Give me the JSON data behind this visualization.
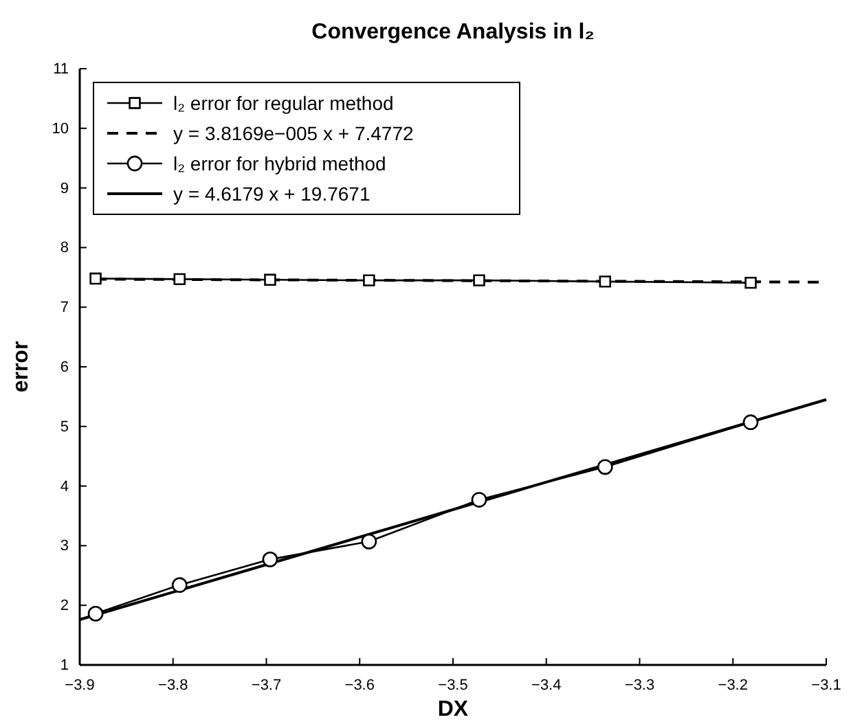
{
  "chart_data": {
    "type": "line",
    "title": "Convergence Analysis in l₂",
    "xlabel": "DX",
    "ylabel": "error",
    "xlim": [
      -3.9,
      -3.1
    ],
    "xticks": [
      -3.9,
      -3.8,
      -3.7,
      -3.6,
      -3.5,
      -3.4,
      -3.3,
      -3.2,
      -3.1
    ],
    "ylim": [
      1,
      11
    ],
    "yticks": [
      1,
      2,
      3,
      4,
      5,
      6,
      7,
      8,
      9,
      10,
      11
    ],
    "grid": false,
    "legend": "top left",
    "series": [
      {
        "name": "l₂ error for regular method",
        "color": "#000000",
        "marker": "square",
        "line_style": "solid",
        "x": [
          -3.883,
          -3.793,
          -3.696,
          -3.59,
          -3.472,
          -3.337,
          -3.181
        ],
        "values": [
          7.48,
          7.47,
          7.46,
          7.45,
          7.45,
          7.43,
          7.41
        ]
      },
      {
        "name": "y = 3.8169e−005 x + 7.4772",
        "color": "#000000",
        "marker": "none",
        "line_style": "dashed",
        "x": [
          -3.883,
          -3.1
        ],
        "values": [
          7.47,
          7.42
        ]
      },
      {
        "name": "l₂ error for hybrid method",
        "color": "#000000",
        "marker": "circle",
        "line_style": "solid",
        "x": [
          -3.883,
          -3.793,
          -3.696,
          -3.59,
          -3.472,
          -3.337,
          -3.181
        ],
        "values": [
          1.86,
          2.34,
          2.77,
          3.07,
          3.77,
          4.32,
          5.07
        ]
      },
      {
        "name": "y = 4.6179 x + 19.7671",
        "color": "#000000",
        "marker": "none",
        "line_style": "solid",
        "x": [
          -3.9,
          -3.1
        ],
        "values": [
          1.76,
          5.45
        ]
      }
    ]
  }
}
